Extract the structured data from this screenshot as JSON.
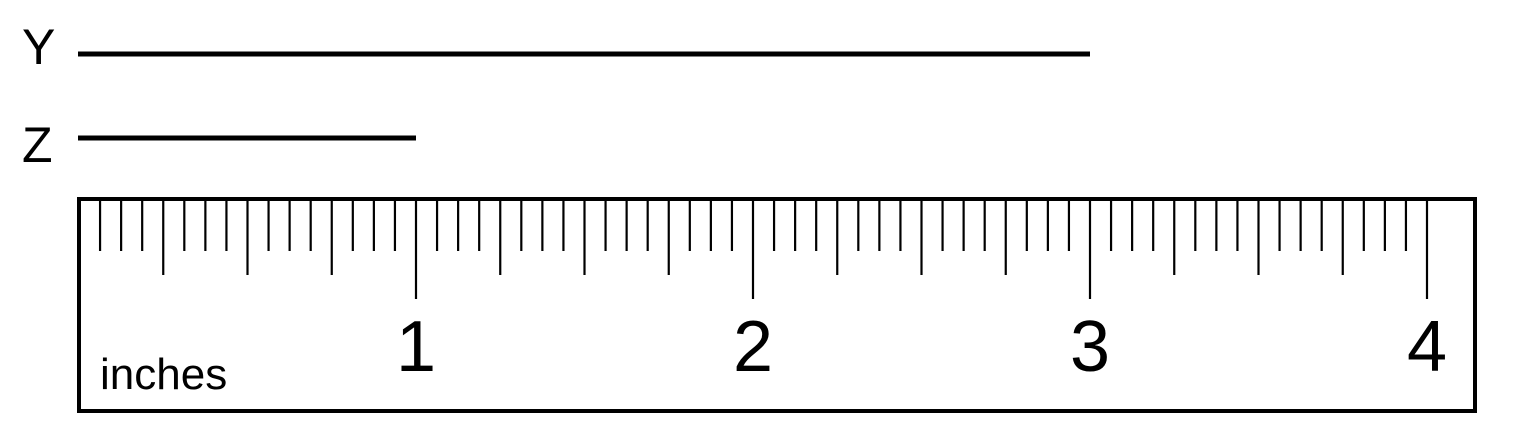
{
  "segments": [
    {
      "label": "Y",
      "length": 3.0
    },
    {
      "label": "Z",
      "length": 1.0
    }
  ],
  "ruler": {
    "unit_label": "inches",
    "max": 4,
    "subdivisions_per_unit": 16,
    "numbers": [
      "1",
      "2",
      "3",
      "4"
    ]
  },
  "colors": {
    "ink": "#000000",
    "background": "#ffffff"
  }
}
